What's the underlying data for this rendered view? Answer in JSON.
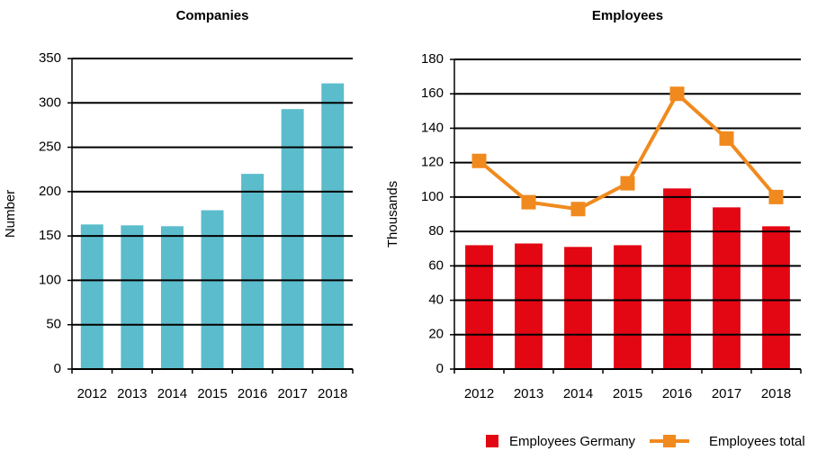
{
  "chart_data": [
    {
      "type": "bar",
      "title": "Companies",
      "y_label": "Number",
      "categories": [
        "2012",
        "2013",
        "2014",
        "2015",
        "2016",
        "2017",
        "2018"
      ],
      "values": [
        163,
        162,
        161,
        179,
        220,
        293,
        322
      ],
      "color": "#5bbccc",
      "ylim": [
        0,
        350
      ],
      "yticks": [
        0,
        50,
        100,
        150,
        200,
        250,
        300,
        350
      ],
      "grid": true
    },
    {
      "type": "bar_line",
      "title": "Employees",
      "y_label": "Thousands",
      "categories": [
        "2012",
        "2013",
        "2014",
        "2015",
        "2016",
        "2017",
        "2018"
      ],
      "series": [
        {
          "name": "Employees Germany",
          "color": "#e30613",
          "kind": "bar",
          "values": [
            72,
            73,
            71,
            72,
            105,
            94,
            83
          ]
        },
        {
          "name": "Employees total",
          "color": "#f08a1e",
          "kind": "line",
          "values": [
            121,
            97,
            93,
            108,
            160,
            134,
            100
          ]
        }
      ],
      "ylim": [
        0,
        180
      ],
      "yticks": [
        0,
        20,
        40,
        60,
        80,
        100,
        120,
        140,
        160,
        180
      ],
      "grid": true,
      "legend": "bottom-right"
    }
  ]
}
